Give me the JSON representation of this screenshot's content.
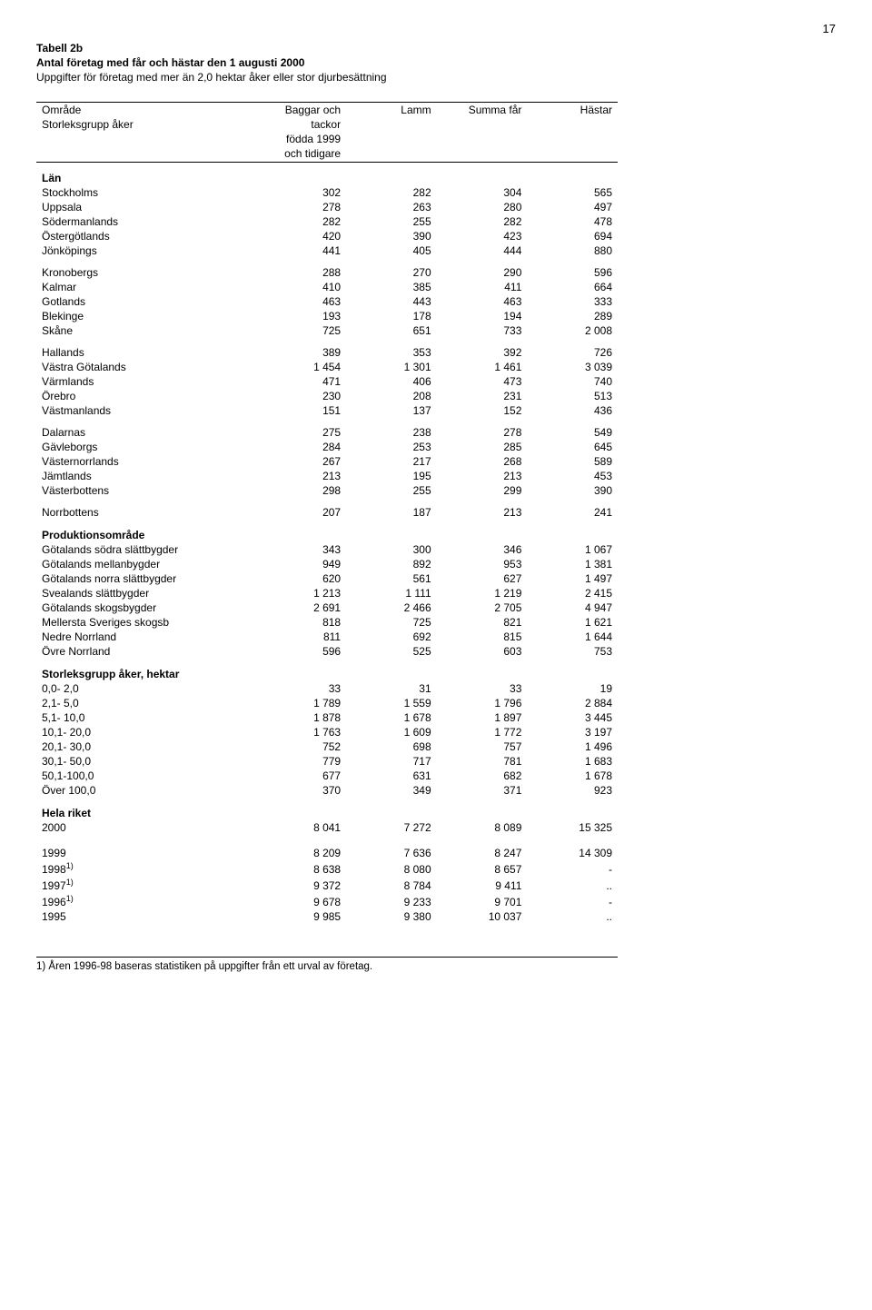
{
  "page_number": "17",
  "title": {
    "line1": "Tabell 2b",
    "line2": "Antal företag med får och hästar den 1 augusti 2000",
    "line3": "Uppgifter för företag med mer än 2,0 hektar åker eller stor djurbesättning"
  },
  "columns": {
    "c0_line1": "Område",
    "c0_line2": "Storleksgrupp åker",
    "c1_line1": "Baggar och",
    "c1_line2": "tackor",
    "c1_line3": "födda 1999",
    "c1_line4": "och tidigare",
    "c2": "Lamm",
    "c3": "Summa får",
    "c4": "Hästar"
  },
  "sections": {
    "lan": "Län",
    "prod": "Produktionsområde",
    "stor": "Storleksgrupp åker, hektar",
    "hela": "Hela riket"
  },
  "lan_rows": [
    {
      "label": "Stockholms",
      "v": [
        "302",
        "282",
        "304",
        "565"
      ]
    },
    {
      "label": "Uppsala",
      "v": [
        "278",
        "263",
        "280",
        "497"
      ]
    },
    {
      "label": "Södermanlands",
      "v": [
        "282",
        "255",
        "282",
        "478"
      ]
    },
    {
      "label": "Östergötlands",
      "v": [
        "420",
        "390",
        "423",
        "694"
      ]
    },
    {
      "label": "Jönköpings",
      "v": [
        "441",
        "405",
        "444",
        "880"
      ]
    }
  ],
  "lan_rows2": [
    {
      "label": "Kronobergs",
      "v": [
        "288",
        "270",
        "290",
        "596"
      ]
    },
    {
      "label": "Kalmar",
      "v": [
        "410",
        "385",
        "411",
        "664"
      ]
    },
    {
      "label": "Gotlands",
      "v": [
        "463",
        "443",
        "463",
        "333"
      ]
    },
    {
      "label": "Blekinge",
      "v": [
        "193",
        "178",
        "194",
        "289"
      ]
    },
    {
      "label": "Skåne",
      "v": [
        "725",
        "651",
        "733",
        "2 008"
      ]
    }
  ],
  "lan_rows3": [
    {
      "label": "Hallands",
      "v": [
        "389",
        "353",
        "392",
        "726"
      ]
    },
    {
      "label": "Västra Götalands",
      "v": [
        "1 454",
        "1 301",
        "1 461",
        "3 039"
      ]
    },
    {
      "label": "Värmlands",
      "v": [
        "471",
        "406",
        "473",
        "740"
      ]
    },
    {
      "label": "Örebro",
      "v": [
        "230",
        "208",
        "231",
        "513"
      ]
    },
    {
      "label": "Västmanlands",
      "v": [
        "151",
        "137",
        "152",
        "436"
      ]
    }
  ],
  "lan_rows4": [
    {
      "label": "Dalarnas",
      "v": [
        "275",
        "238",
        "278",
        "549"
      ]
    },
    {
      "label": "Gävleborgs",
      "v": [
        "284",
        "253",
        "285",
        "645"
      ]
    },
    {
      "label": "Västernorrlands",
      "v": [
        "267",
        "217",
        "268",
        "589"
      ]
    },
    {
      "label": "Jämtlands",
      "v": [
        "213",
        "195",
        "213",
        "453"
      ]
    },
    {
      "label": "Västerbottens",
      "v": [
        "298",
        "255",
        "299",
        "390"
      ]
    }
  ],
  "lan_rows5": [
    {
      "label": "Norrbottens",
      "v": [
        "207",
        "187",
        "213",
        "241"
      ]
    }
  ],
  "prod_rows": [
    {
      "label": "Götalands södra slättbygder",
      "v": [
        "343",
        "300",
        "346",
        "1 067"
      ]
    },
    {
      "label": "Götalands mellanbygder",
      "v": [
        "949",
        "892",
        "953",
        "1 381"
      ]
    },
    {
      "label": "Götalands norra slättbygder",
      "v": [
        "620",
        "561",
        "627",
        "1 497"
      ]
    },
    {
      "label": "Svealands slättbygder",
      "v": [
        "1 213",
        "1 111",
        "1 219",
        "2 415"
      ]
    },
    {
      "label": "Götalands skogsbygder",
      "v": [
        "2 691",
        "2 466",
        "2 705",
        "4 947"
      ]
    },
    {
      "label": "Mellersta Sveriges skogsb",
      "v": [
        "818",
        "725",
        "821",
        "1 621"
      ]
    },
    {
      "label": "Nedre Norrland",
      "v": [
        "811",
        "692",
        "815",
        "1 644"
      ]
    },
    {
      "label": "Övre Norrland",
      "v": [
        "596",
        "525",
        "603",
        "753"
      ]
    }
  ],
  "stor_rows": [
    {
      "label": "  0,0-   2,0",
      "v": [
        "33",
        "31",
        "33",
        "19"
      ]
    },
    {
      "label": "  2,1-   5,0",
      "v": [
        "1 789",
        "1 559",
        "1 796",
        "2 884"
      ]
    },
    {
      "label": "  5,1- 10,0",
      "v": [
        "1 878",
        "1 678",
        "1 897",
        "3 445"
      ]
    },
    {
      "label": "10,1- 20,0",
      "v": [
        "1 763",
        "1 609",
        "1 772",
        "3 197"
      ]
    },
    {
      "label": "20,1- 30,0",
      "v": [
        "752",
        "698",
        "757",
        "1 496"
      ]
    },
    {
      "label": "30,1- 50,0",
      "v": [
        "779",
        "717",
        "781",
        "1 683"
      ]
    },
    {
      "label": "50,1-100,0",
      "v": [
        "677",
        "631",
        "682",
        "1 678"
      ]
    },
    {
      "label": "Över 100,0",
      "v": [
        "370",
        "349",
        "371",
        "923"
      ]
    }
  ],
  "hela_rows": [
    {
      "label": "2000",
      "v": [
        "8 041",
        "7 272",
        "8 089",
        "15 325"
      ]
    }
  ],
  "year_rows": [
    {
      "label": "1999",
      "sup": "",
      "v": [
        "8 209",
        "7 636",
        "8 247",
        "14 309"
      ]
    },
    {
      "label": "1998",
      "sup": "1)",
      "v": [
        "8 638",
        "8 080",
        "8 657",
        "-"
      ]
    },
    {
      "label": "1997",
      "sup": "1)",
      "v": [
        "9 372",
        "8 784",
        "9 411",
        ".."
      ]
    },
    {
      "label": "1996",
      "sup": "1)",
      "v": [
        "9 678",
        "9 233",
        "9 701",
        "-"
      ]
    },
    {
      "label": "1995",
      "sup": "",
      "v": [
        "9 985",
        "9 380",
        "10 037",
        ".."
      ]
    }
  ],
  "footnote": "1) Åren 1996-98 baseras statistiken på uppgifter från ett urval av företag."
}
